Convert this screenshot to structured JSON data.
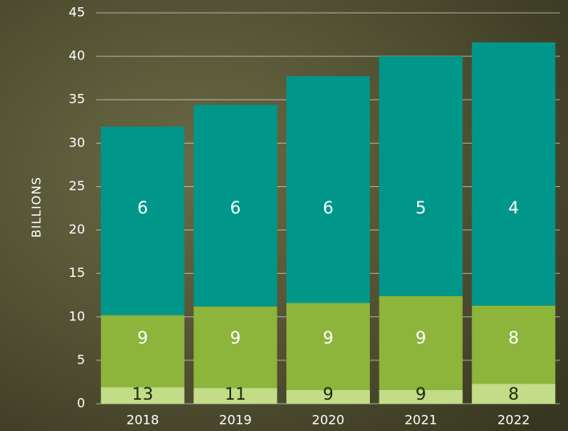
{
  "chart_data": {
    "type": "stacked-bar",
    "y_label": "BILLIONS",
    "categories": [
      "2018",
      "2019",
      "2020",
      "2021",
      "2022"
    ],
    "series": [
      {
        "color": "#c3dc87",
        "values": [
          1.9,
          1.8,
          1.6,
          1.6,
          2.3
        ],
        "point_labels": [
          13,
          11,
          9,
          9,
          8
        ]
      },
      {
        "color": "#8db43b",
        "values": [
          8.3,
          9.4,
          10.0,
          10.8,
          9.0
        ],
        "point_labels": [
          9,
          9,
          9,
          9,
          8
        ]
      },
      {
        "color": "#00968a",
        "values": [
          21.7,
          23.2,
          26.1,
          27.6,
          30.3
        ],
        "point_labels": [
          6,
          6,
          6,
          5,
          4
        ]
      }
    ],
    "ylim": [
      0,
      45
    ],
    "yticks": [
      0,
      5,
      10,
      15,
      20,
      25,
      30,
      35,
      40,
      45
    ],
    "grid": true
  }
}
